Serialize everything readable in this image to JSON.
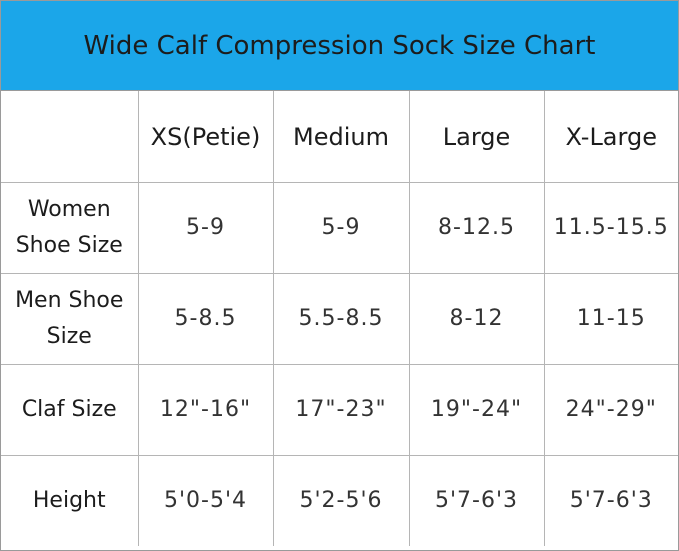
{
  "title": "Wide Calf Compression Sock Size Chart",
  "table": {
    "header": [
      "XS(Petie)",
      "Medium",
      "Large",
      "X-Large"
    ],
    "rows": [
      {
        "label": "Women Shoe Size",
        "cells": [
          "5-9",
          "5-9",
          "8-12.5",
          "11.5-15.5"
        ]
      },
      {
        "label": "Men Shoe Size",
        "cells": [
          "5-8.5",
          "5.5-8.5",
          "8-12",
          "11-15"
        ]
      },
      {
        "label": "Claf Size",
        "cells": [
          "12\"-16\"",
          "17\"-23\"",
          "19\"-24\"",
          "24\"-29\""
        ]
      },
      {
        "label": "Height",
        "cells": [
          "5'0-5'4",
          "5'2-5'6",
          "5'7-6'3",
          "5'7-6'3"
        ]
      }
    ]
  }
}
